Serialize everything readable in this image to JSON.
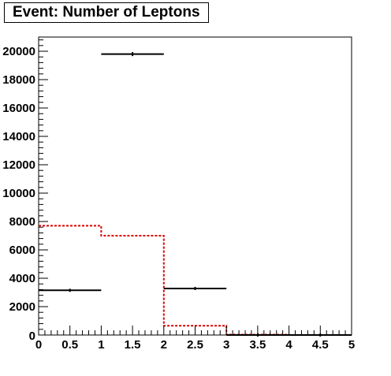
{
  "chart_data": {
    "type": "bar",
    "title": "Event: Number of Leptons",
    "xlabel": "",
    "ylabel": "",
    "xlim": [
      0,
      5
    ],
    "ylim": [
      0,
      21000
    ],
    "grid": false,
    "x_ticks": [
      "0",
      "0.5",
      "1",
      "1.5",
      "2",
      "2.5",
      "3",
      "3.5",
      "4",
      "4.5",
      "5"
    ],
    "y_ticks": [
      "2000",
      "4000",
      "6000",
      "8000",
      "10000",
      "12000",
      "14000",
      "16000",
      "18000",
      "20000"
    ],
    "bin_edges": [
      0,
      1,
      2,
      3,
      4,
      5
    ],
    "series": [
      {
        "style": "data-points",
        "color": "#000000",
        "values": [
          3150,
          19800,
          3280,
          0,
          0
        ],
        "errors": [
          56,
          141,
          57,
          0,
          0
        ]
      },
      {
        "style": "step-histogram",
        "color": "#dd0000",
        "values": [
          7700,
          7000,
          650,
          30,
          0
        ]
      }
    ]
  }
}
